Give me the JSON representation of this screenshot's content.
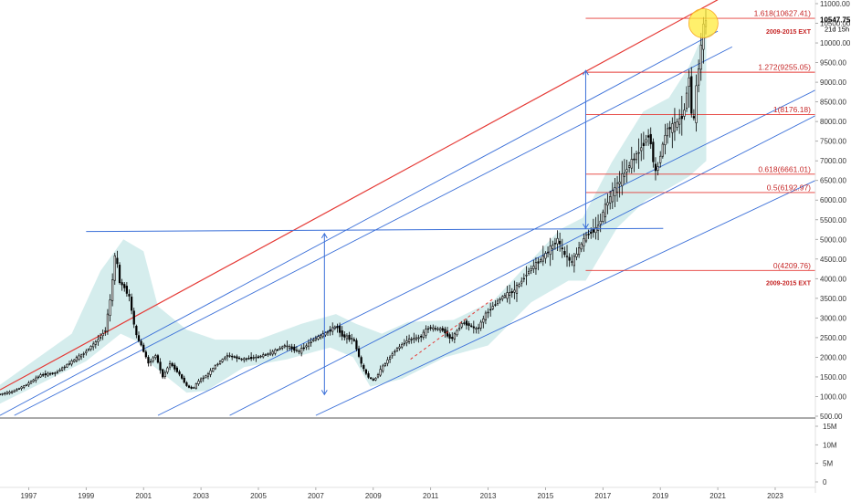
{
  "colors": {
    "background": "#ffffff",
    "up_candle": "#ffffff",
    "down_candle": "#000000",
    "candle_stroke": "#000000",
    "band_fill": "#d3ecec",
    "channel_blue": "#3a6fd8",
    "channel_red": "#e53935",
    "fib_red": "#e53935",
    "fib_label": "#c62828",
    "highlight_yellow": "#ffeb3b",
    "axis_text": "#333333",
    "separator": "#555555"
  },
  "price_axis": {
    "ticks": [
      "500.00",
      "1000.00",
      "1500.00",
      "2000.00",
      "2500.00",
      "3000.00",
      "3500.00",
      "4000.00",
      "4500.00",
      "5000.00",
      "5500.00",
      "6000.00",
      "6500.00",
      "7000.00",
      "7500.00",
      "8000.00",
      "8500.00",
      "9000.00",
      "9500.00",
      "10000.00",
      "10500.00",
      "11000.00"
    ],
    "last_price": "10547.75",
    "countdown": "21d 15h"
  },
  "volume_axis": {
    "ticks": [
      "15M",
      "10M",
      "5M",
      "0"
    ]
  },
  "time_axis": {
    "ticks": [
      "1997",
      "1999",
      "2001",
      "2003",
      "2005",
      "2007",
      "2009",
      "2011",
      "2013",
      "2015",
      "2017",
      "2019",
      "2021",
      "2023"
    ]
  },
  "chart_data": {
    "type": "candlestick",
    "timeframe": "monthly",
    "ylim": [
      500,
      11000
    ],
    "xlim": [
      1996.0,
      2024.4
    ],
    "price_path": [
      [
        1996.0,
        1050
      ],
      [
        1996.5,
        1120
      ],
      [
        1997.0,
        1300
      ],
      [
        1997.5,
        1550
      ],
      [
        1998.0,
        1600
      ],
      [
        1998.5,
        1850
      ],
      [
        1999.0,
        2100
      ],
      [
        1999.5,
        2450
      ],
      [
        1999.75,
        2700
      ],
      [
        1999.95,
        3600
      ],
      [
        2000.1,
        4700
      ],
      [
        2000.25,
        3900
      ],
      [
        2000.4,
        3800
      ],
      [
        2000.6,
        3500
      ],
      [
        2000.8,
        2600
      ],
      [
        2001.0,
        2300
      ],
      [
        2001.25,
        1850
      ],
      [
        2001.5,
        2050
      ],
      [
        2001.75,
        1500
      ],
      [
        2002.0,
        1850
      ],
      [
        2002.3,
        1600
      ],
      [
        2002.6,
        1250
      ],
      [
        2002.8,
        1200
      ],
      [
        2003.0,
        1400
      ],
      [
        2003.3,
        1550
      ],
      [
        2003.6,
        1800
      ],
      [
        2004.0,
        2050
      ],
      [
        2004.5,
        1950
      ],
      [
        2005.0,
        2000
      ],
      [
        2005.5,
        2100
      ],
      [
        2006.0,
        2300
      ],
      [
        2006.5,
        2150
      ],
      [
        2007.0,
        2450
      ],
      [
        2007.5,
        2650
      ],
      [
        2007.8,
        2800
      ],
      [
        2008.0,
        2550
      ],
      [
        2008.4,
        2450
      ],
      [
        2008.7,
        1750
      ],
      [
        2008.9,
        1500
      ],
      [
        2009.1,
        1400
      ],
      [
        2009.4,
        1750
      ],
      [
        2009.8,
        2150
      ],
      [
        2010.3,
        2450
      ],
      [
        2010.7,
        2500
      ],
      [
        2011.0,
        2750
      ],
      [
        2011.5,
        2700
      ],
      [
        2011.8,
        2450
      ],
      [
        2012.2,
        2900
      ],
      [
        2012.7,
        2700
      ],
      [
        2013.0,
        3100
      ],
      [
        2013.5,
        3500
      ],
      [
        2014.0,
        3700
      ],
      [
        2014.5,
        4200
      ],
      [
        2015.0,
        4550
      ],
      [
        2015.5,
        5000
      ],
      [
        2015.7,
        4650
      ],
      [
        2016.0,
        4400
      ],
      [
        2016.2,
        4700
      ],
      [
        2016.5,
        5100
      ],
      [
        2016.9,
        5300
      ],
      [
        2017.2,
        5900
      ],
      [
        2017.6,
        6400
      ],
      [
        2018.0,
        6900
      ],
      [
        2018.3,
        7200
      ],
      [
        2018.7,
        7700
      ],
      [
        2018.9,
        6650
      ],
      [
        2019.0,
        6900
      ],
      [
        2019.3,
        7800
      ],
      [
        2019.6,
        7900
      ],
      [
        2019.9,
        8200
      ],
      [
        2020.1,
        9300
      ],
      [
        2020.2,
        7600
      ],
      [
        2020.35,
        9000
      ],
      [
        2020.5,
        9900
      ],
      [
        2020.6,
        10547.75
      ]
    ],
    "channel_lines": [
      {
        "color": "red",
        "points": [
          [
            1996.0,
            1170
          ],
          [
            2021.0,
            11100
          ]
        ]
      },
      {
        "color": "blue",
        "points": [
          [
            1996.0,
            520
          ],
          [
            2021.0,
            10300
          ]
        ]
      },
      {
        "color": "blue",
        "points": [
          [
            1996.5,
            520
          ],
          [
            2021.5,
            9900
          ]
        ]
      },
      {
        "color": "blue",
        "points": [
          [
            2001.5,
            520
          ],
          [
            2024.4,
            8800
          ]
        ]
      },
      {
        "color": "blue",
        "points": [
          [
            2004.0,
            520
          ],
          [
            2024.4,
            8150
          ]
        ]
      },
      {
        "color": "blue",
        "points": [
          [
            2007.0,
            520
          ],
          [
            2024.4,
            6500
          ]
        ]
      }
    ],
    "horizontal_ray": [
      [
        1999.0,
        5200
      ],
      [
        2019.1,
        5280
      ]
    ],
    "measure_arrows": [
      [
        2007.3,
        5150,
        1050
      ],
      [
        2016.4,
        5280,
        9300
      ]
    ],
    "dashed_line": [
      [
        2010.3,
        1950
      ],
      [
        2013.2,
        3500
      ]
    ],
    "fib_extension": {
      "name": "2009-2015 EXT",
      "x_start": 2016.4,
      "x_end": 2024.4,
      "levels": [
        {
          "ratio": "1.618",
          "price": 10627.41,
          "label": "1.618(10627.41)"
        },
        {
          "ratio": "1.272",
          "price": 9255.05,
          "label": "1.272(9255.05)"
        },
        {
          "ratio": "1",
          "price": 8176.18,
          "label": "1(8176.18)"
        },
        {
          "ratio": "0.618",
          "price": 6661.01,
          "label": "0.618(6661.01)"
        },
        {
          "ratio": "0.5",
          "price": 6192.97,
          "label": "0.5(6192.97)"
        },
        {
          "ratio": "0",
          "price": 4209.76,
          "label": "0(4209.76)"
        }
      ],
      "tags": [
        {
          "text": "2009-2015 EXT",
          "price": 10350
        },
        {
          "text": "2009-2015 EXT",
          "price": 3950
        }
      ]
    },
    "highlight_circle": {
      "x": 2020.5,
      "price": 10500
    },
    "band_lower": [
      [
        1996.0,
        820
      ],
      [
        1999.0,
        1900
      ],
      [
        2000.2,
        2600
      ],
      [
        2000.8,
        2400
      ],
      [
        2001.3,
        1800
      ],
      [
        2002.5,
        1100
      ],
      [
        2003.2,
        1150
      ],
      [
        2004.5,
        1750
      ],
      [
        2006.0,
        1950
      ],
      [
        2007.5,
        2250
      ],
      [
        2008.3,
        2000
      ],
      [
        2008.9,
        1250
      ],
      [
        2010.0,
        1450
      ],
      [
        2011.5,
        2000
      ],
      [
        2013.0,
        2300
      ],
      [
        2014.5,
        3400
      ],
      [
        2015.8,
        3950
      ],
      [
        2016.4,
        3950
      ],
      [
        2017.5,
        5300
      ],
      [
        2018.5,
        6000
      ],
      [
        2019.3,
        6300
      ],
      [
        2020.0,
        6600
      ],
      [
        2020.6,
        7000
      ]
    ],
    "band_upper": [
      [
        1996.0,
        1300
      ],
      [
        1998.5,
        2600
      ],
      [
        1999.5,
        4200
      ],
      [
        2000.3,
        5000
      ],
      [
        2001.0,
        4700
      ],
      [
        2001.5,
        3300
      ],
      [
        2002.5,
        2700
      ],
      [
        2003.5,
        2450
      ],
      [
        2005.0,
        2450
      ],
      [
        2006.5,
        2850
      ],
      [
        2007.7,
        3100
      ],
      [
        2008.4,
        2850
      ],
      [
        2009.3,
        2600
      ],
      [
        2010.2,
        2900
      ],
      [
        2011.8,
        2950
      ],
      [
        2013.2,
        3450
      ],
      [
        2014.6,
        4550
      ],
      [
        2015.5,
        5250
      ],
      [
        2016.3,
        5550
      ],
      [
        2017.3,
        6950
      ],
      [
        2018.4,
        8250
      ],
      [
        2019.3,
        8600
      ],
      [
        2020.0,
        9400
      ],
      [
        2020.6,
        10400
      ]
    ]
  }
}
